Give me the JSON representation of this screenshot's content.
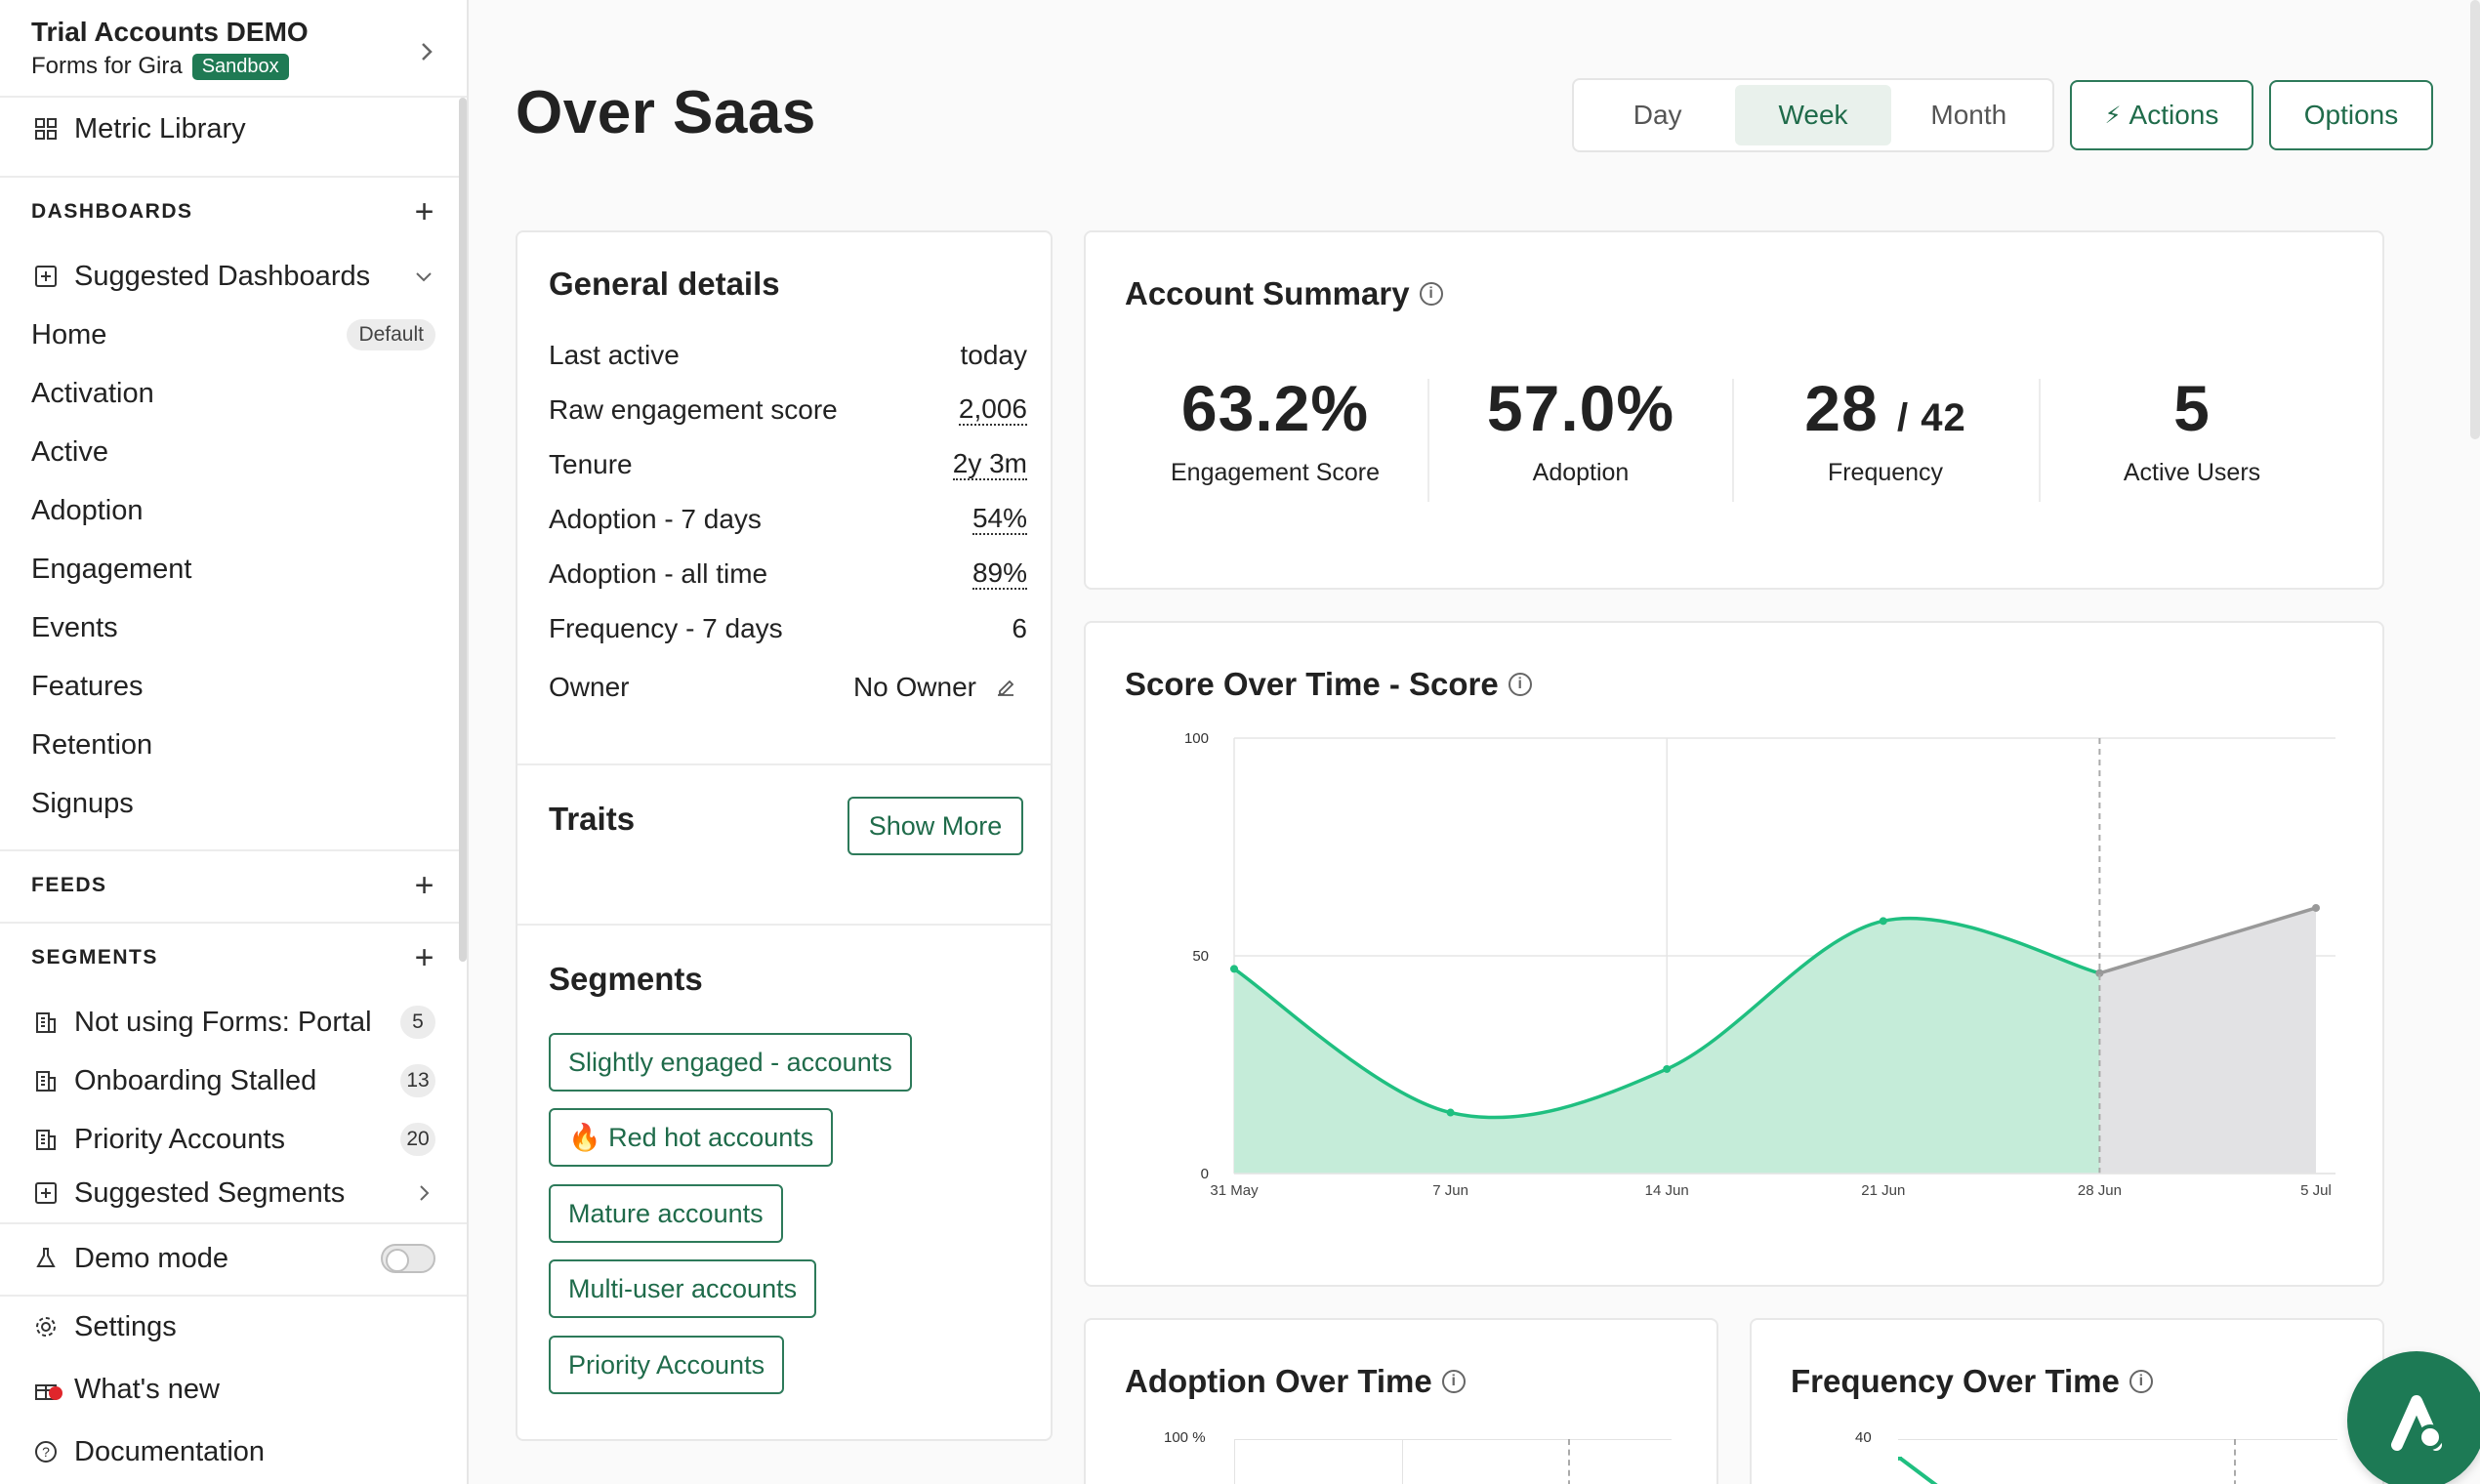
{
  "org": {
    "name": "Trial Accounts DEMO",
    "product": "Forms for Gira",
    "env_badge": "Sandbox"
  },
  "sidebar": {
    "metric_library": "Metric Library",
    "dashboards_header": "DASHBOARDS",
    "suggested_dashboards": "Suggested Dashboards",
    "items": [
      {
        "label": "Home",
        "badge": "Default"
      },
      {
        "label": "Activation"
      },
      {
        "label": "Active"
      },
      {
        "label": "Adoption"
      },
      {
        "label": "Engagement"
      },
      {
        "label": "Events"
      },
      {
        "label": "Features"
      },
      {
        "label": "Retention"
      },
      {
        "label": "Signups"
      }
    ],
    "feeds_header": "FEEDS",
    "segments_header": "SEGMENTS",
    "segments": [
      {
        "label": "Not using Forms: Portal",
        "count": "5"
      },
      {
        "label": "Onboarding Stalled",
        "count": "13"
      },
      {
        "label": "Priority Accounts",
        "count": "20"
      }
    ],
    "suggested_segments": "Suggested Segments",
    "demo_mode": "Demo mode",
    "settings": "Settings",
    "whats_new": "What's new",
    "documentation": "Documentation"
  },
  "header": {
    "title": "Over Saas",
    "ranges": [
      "Day",
      "Week",
      "Month"
    ],
    "active_range": "Week",
    "actions_label": "Actions",
    "options_label": "Options"
  },
  "general": {
    "title": "General details",
    "rows": [
      {
        "label": "Last active",
        "value": "today"
      },
      {
        "label": "Raw engagement score",
        "value": "2,006"
      },
      {
        "label": "Tenure",
        "value": "2y 3m"
      },
      {
        "label": "Adoption - 7 days",
        "value": "54%"
      },
      {
        "label": "Adoption - all time",
        "value": "89%"
      },
      {
        "label": "Frequency - 7 days",
        "value": "6"
      }
    ],
    "owner_label": "Owner",
    "owner_value": "No Owner",
    "traits_title": "Traits",
    "show_more": "Show More",
    "segments_title": "Segments",
    "segment_tags": [
      "Slightly engaged - accounts",
      "🔥 Red hot accounts",
      "Mature accounts",
      "Multi-user accounts",
      "Priority Accounts"
    ]
  },
  "summary": {
    "title": "Account Summary",
    "metrics": [
      {
        "value": "63.2%",
        "label": "Engagement Score"
      },
      {
        "value": "57.0%",
        "label": "Adoption"
      },
      {
        "value": "28",
        "value_suffix": "/ 42",
        "label": "Frequency"
      },
      {
        "value": "5",
        "label": "Active Users"
      }
    ]
  },
  "score_chart": {
    "title": "Score Over Time - Score"
  },
  "adoption_chart": {
    "title": "Adoption Over Time",
    "y_top_label": "100 %"
  },
  "frequency_chart": {
    "title": "Frequency Over Time",
    "y_top_label": "40"
  },
  "chart_data": {
    "type": "area",
    "title": "Score Over Time - Score",
    "x": [
      "31 May",
      "7 Jun",
      "14 Jun",
      "21 Jun",
      "28 Jun",
      "5 Jul"
    ],
    "y_ticks": [
      "0",
      "50",
      "100"
    ],
    "ylim": [
      0,
      100
    ],
    "series": [
      {
        "values": [
          47,
          14,
          24,
          58,
          46,
          null
        ],
        "color": "#1fbf80"
      },
      {
        "values": [
          null,
          null,
          null,
          null,
          46,
          61
        ],
        "color": "#999999"
      }
    ],
    "grid": true
  }
}
